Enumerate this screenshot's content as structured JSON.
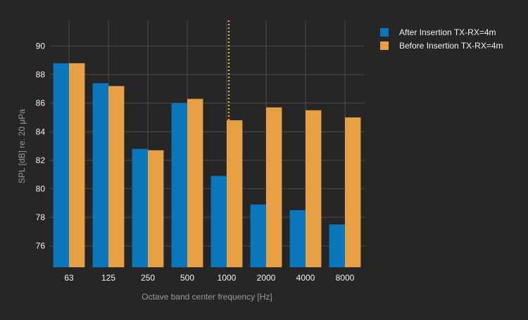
{
  "colors": {
    "background": "#262626",
    "grid": "#4a4a4a",
    "axis_text": "#f2f2f2",
    "axis_title": "#9a9a9a",
    "after": "#0a77bd",
    "before": "#e7a144",
    "marker_line": "#e7a144"
  },
  "chart_data": {
    "type": "bar",
    "title": "",
    "xlabel": "Octave band center frequency [Hz]",
    "ylabel": "SPL [dB] re. 20 μPa",
    "categories": [
      "63",
      "125",
      "250",
      "500",
      "1000",
      "2000",
      "4000",
      "8000"
    ],
    "ylim": [
      74.5,
      91.8
    ],
    "yticks": [
      76,
      78,
      80,
      82,
      84,
      86,
      88,
      90
    ],
    "grid": true,
    "legend_position": "top-right",
    "series": [
      {
        "name": "After Insertion TX-RX=4m",
        "color": "#0a77bd",
        "values": [
          88.8,
          87.4,
          82.8,
          86.0,
          80.9,
          78.9,
          78.5,
          77.5
        ]
      },
      {
        "name": "Before Insertion TX-RX=4m",
        "color": "#e7a144",
        "values": [
          88.8,
          87.2,
          82.7,
          86.3,
          84.8,
          85.7,
          85.5,
          85.0
        ]
      }
    ],
    "annotations": [
      {
        "type": "vertical-dotted-line",
        "category": "1000",
        "color": "#e7a144"
      }
    ]
  }
}
